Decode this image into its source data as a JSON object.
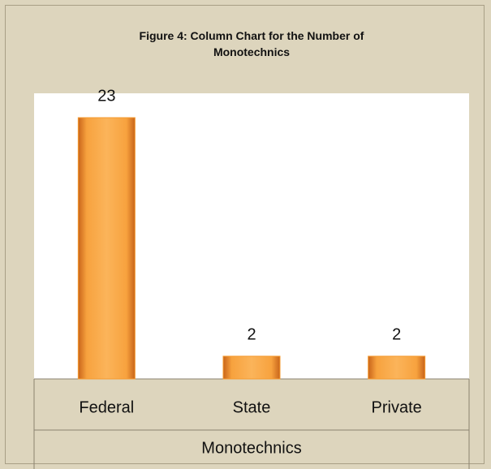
{
  "chart_data": {
    "type": "bar",
    "title": "Figure 4: Column Chart for the Number of Monotechnics",
    "categories": [
      "Federal",
      "State",
      "Private"
    ],
    "values": [
      23,
      2,
      2
    ],
    "color": "#f59a2e",
    "x_label": "Monotechnics",
    "ylim": [
      0,
      25
    ]
  }
}
